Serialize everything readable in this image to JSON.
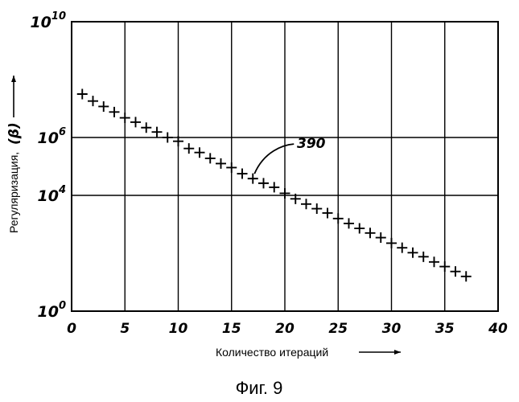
{
  "chart_data": {
    "type": "scatter",
    "xlabel": "Количество итераций",
    "ylabel": "Регуляризация,",
    "ylabel_symbol": "(β)",
    "xlim": [
      0,
      40
    ],
    "ylim": [
      0,
      10
    ],
    "y_scale": "log",
    "grid": true,
    "x_ticks": [
      "0",
      "5",
      "10",
      "15",
      "20",
      "25",
      "30",
      "35",
      "40"
    ],
    "y_ticks": [
      {
        "base": "10",
        "exp": "0",
        "value": 0
      },
      {
        "base": "10",
        "exp": "4",
        "value": 4
      },
      {
        "base": "10",
        "exp": "6",
        "value": 6
      },
      {
        "base": "10",
        "exp": "10",
        "value": 10
      }
    ],
    "marker": "+",
    "x": [
      1,
      2,
      3,
      4,
      5,
      6,
      7,
      8,
      9,
      10,
      11,
      12,
      13,
      14,
      15,
      16,
      17,
      18,
      19,
      20,
      21,
      22,
      23,
      24,
      25,
      26,
      27,
      28,
      29,
      30,
      31,
      32,
      33,
      34,
      35,
      36,
      37
    ],
    "log10_y": [
      7.5,
      7.26,
      7.07,
      6.88,
      6.68,
      6.53,
      6.34,
      6.19,
      6.0,
      5.87,
      5.62,
      5.48,
      5.28,
      5.1,
      4.96,
      4.75,
      4.58,
      4.42,
      4.28,
      4.07,
      3.88,
      3.7,
      3.54,
      3.39,
      3.2,
      3.03,
      2.86,
      2.7,
      2.54,
      2.35,
      2.19,
      2.02,
      1.88,
      1.7,
      1.54,
      1.37,
      1.2
    ],
    "annotation": {
      "text": "390",
      "x": 17
    }
  },
  "caption": "Фиг. 9"
}
